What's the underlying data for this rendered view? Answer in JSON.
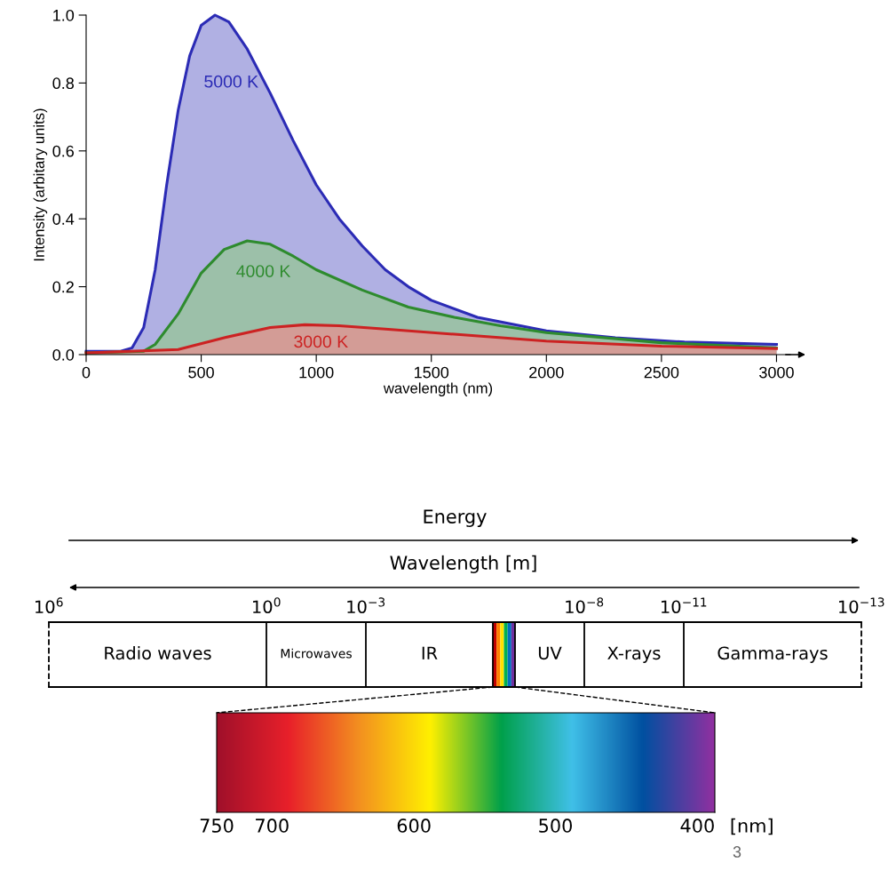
{
  "chart_data": [
    {
      "type": "area",
      "xlabel": "wavelength (nm)",
      "ylabel": "Intensity (arbitary units)",
      "xlim": [
        0,
        3060
      ],
      "ylim": [
        0,
        1.0
      ],
      "xticks": [
        0,
        500,
        1000,
        1500,
        2000,
        2500,
        3000
      ],
      "yticks": [
        {
          "value": 0,
          "label": "0.0"
        },
        0.2,
        0.4,
        0.6,
        0.8,
        {
          "value": 1,
          "label": "1.0"
        }
      ],
      "grid": false,
      "legend": false,
      "marker": "none",
      "line_style": "solid",
      "series": [
        {
          "name": "5000 K",
          "color": "#2b2bb5",
          "x": [
            0,
            150,
            200,
            250,
            300,
            350,
            400,
            450,
            500,
            560,
            620,
            700,
            800,
            900,
            1000,
            1100,
            1200,
            1300,
            1400,
            1500,
            1700,
            2000,
            2300,
            2600,
            3000
          ],
          "values": [
            0.01,
            0.01,
            0.02,
            0.08,
            0.25,
            0.5,
            0.72,
            0.88,
            0.97,
            1.0,
            0.98,
            0.9,
            0.77,
            0.63,
            0.5,
            0.4,
            0.32,
            0.25,
            0.2,
            0.16,
            0.11,
            0.07,
            0.05,
            0.037,
            0.03
          ]
        },
        {
          "name": "4000 K",
          "color": "#2e8b2e",
          "x": [
            0,
            250,
            300,
            400,
            500,
            600,
            700,
            800,
            900,
            1000,
            1200,
            1400,
            1600,
            1800,
            2000,
            2500,
            3000
          ],
          "values": [
            0.005,
            0.01,
            0.03,
            0.12,
            0.24,
            0.31,
            0.335,
            0.325,
            0.29,
            0.25,
            0.19,
            0.14,
            0.11,
            0.085,
            0.065,
            0.035,
            0.02
          ]
        },
        {
          "name": "3000 K",
          "color": "#cc2222",
          "x": [
            0,
            400,
            600,
            800,
            950,
            1100,
            1300,
            1600,
            2000,
            2500,
            3000
          ],
          "values": [
            0.005,
            0.015,
            0.05,
            0.08,
            0.088,
            0.085,
            0.075,
            0.06,
            0.04,
            0.025,
            0.018
          ]
        }
      ]
    },
    {
      "type": "other",
      "categories": [
        "Radio waves",
        "Microwaves",
        "IR",
        null,
        "UV",
        "X-rays",
        "Gamma-rays"
      ],
      "colors": [
        "#c00000",
        "#ff8000",
        "#ffe000",
        "#00b050",
        "#0070c0",
        "#7030a0"
      ],
      "annotations": [
        "Energy",
        "Wavelength [m]",
        "10$^{6}$",
        "10$^{0}$",
        "10$^{−3}$",
        "10$^{−8}$",
        "10$^{−11}$",
        "10$^{−13}$"
      ]
    },
    {
      "type": "other",
      "colors": [
        "#a0102a",
        "#e8202a",
        "#f39020",
        "#fff000",
        "#00a04a",
        "#40c0e8",
        "#0050a0",
        "#9030a0"
      ],
      "annotations": [
        "750",
        "700",
        "600",
        "500",
        "400",
        "[nm]",
        "3"
      ]
    }
  ]
}
